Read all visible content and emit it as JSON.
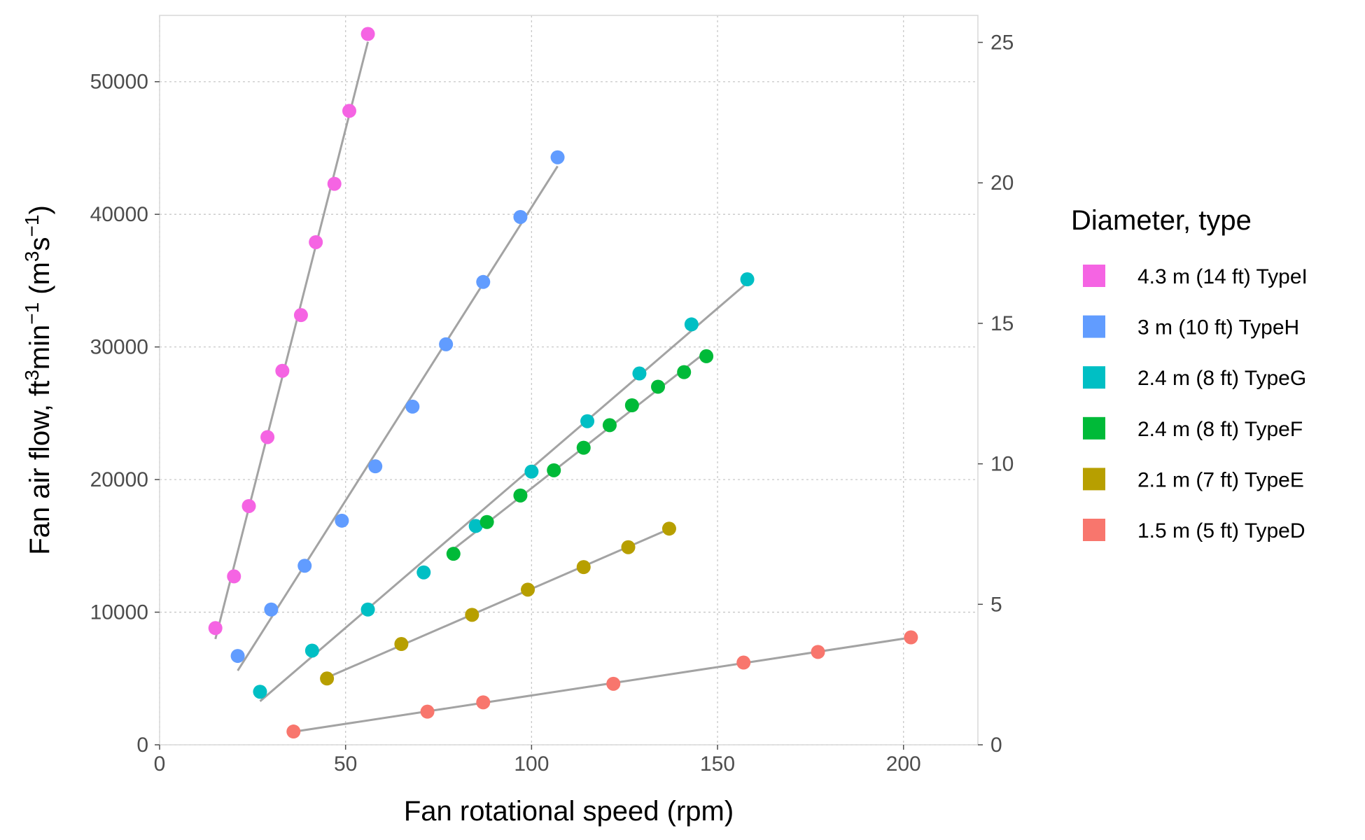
{
  "chart_data": {
    "type": "scatter",
    "title": "",
    "xlabel": "Fan rotational speed (rpm)",
    "ylabel": {
      "prefix": "Fan air flow, ft",
      "sup1": "3",
      "mid1": "min",
      "sup2": "−1",
      "mid2": " (m",
      "sup3": "3",
      "mid3": "s",
      "sup4": "−1",
      "suffix": ")"
    },
    "xlim": [
      0,
      220
    ],
    "ylim": [
      0,
      55000
    ],
    "y2lim": [
      0,
      25.96
    ],
    "x_ticks": [
      0,
      50,
      100,
      150,
      200
    ],
    "x_tick_labels": [
      "0",
      "50",
      "100",
      "150",
      "200"
    ],
    "y_ticks": [
      0,
      10000,
      20000,
      30000,
      40000,
      50000
    ],
    "y_tick_labels": [
      "0",
      "10000",
      "20000",
      "30000",
      "40000",
      "50000"
    ],
    "y2_ticks": [
      0,
      5,
      10,
      15,
      20,
      25
    ],
    "y2_tick_labels": [
      "0",
      "5",
      "10",
      "15",
      "20",
      "25"
    ],
    "grid": true,
    "fit_lines": true,
    "fit_line_color": "#a3a3a3",
    "legend": {
      "title": "Diameter, type",
      "placement": "right"
    },
    "series": [
      {
        "name": "4.3 m (14 ft) TypeI",
        "color": "#F564E3",
        "x": [
          15,
          20,
          24,
          29,
          33,
          38,
          42,
          47,
          51,
          56
        ],
        "y": [
          8800,
          12700,
          18000,
          23200,
          28200,
          32400,
          37900,
          42300,
          47800,
          53600
        ]
      },
      {
        "name": "3 m (10 ft) TypeH",
        "color": "#619CFF",
        "x": [
          21,
          30,
          39,
          49,
          58,
          68,
          77,
          87,
          97,
          107
        ],
        "y": [
          6700,
          10200,
          13500,
          16900,
          21000,
          25500,
          30200,
          34900,
          39800,
          44300
        ]
      },
      {
        "name": "2.4 m (8 ft) TypeG",
        "color": "#00BFC4",
        "x": [
          27,
          41,
          56,
          71,
          85,
          100,
          115,
          129,
          143,
          158
        ],
        "y": [
          4000,
          7100,
          10200,
          13000,
          16500,
          20600,
          24400,
          28000,
          31700,
          35100
        ]
      },
      {
        "name": "2.4 m (8 ft) TypeF",
        "color": "#00BA38",
        "x": [
          79,
          88,
          97,
          106,
          114,
          121,
          127,
          134,
          141,
          147
        ],
        "y": [
          14400,
          16800,
          18800,
          20700,
          22400,
          24100,
          25600,
          27000,
          28100,
          29300
        ]
      },
      {
        "name": "2.1 m (7 ft) TypeE",
        "color": "#B79F00",
        "x": [
          45,
          65,
          84,
          99,
          114,
          126,
          137
        ],
        "y": [
          5000,
          7600,
          9800,
          11700,
          13400,
          14900,
          16300
        ]
      },
      {
        "name": "1.5 m (5 ft) TypeD",
        "color": "#F8766D",
        "x": [
          36,
          72,
          87,
          122,
          157,
          177,
          202
        ],
        "y": [
          1000,
          2500,
          3200,
          4600,
          6200,
          7000,
          8100
        ]
      }
    ]
  }
}
